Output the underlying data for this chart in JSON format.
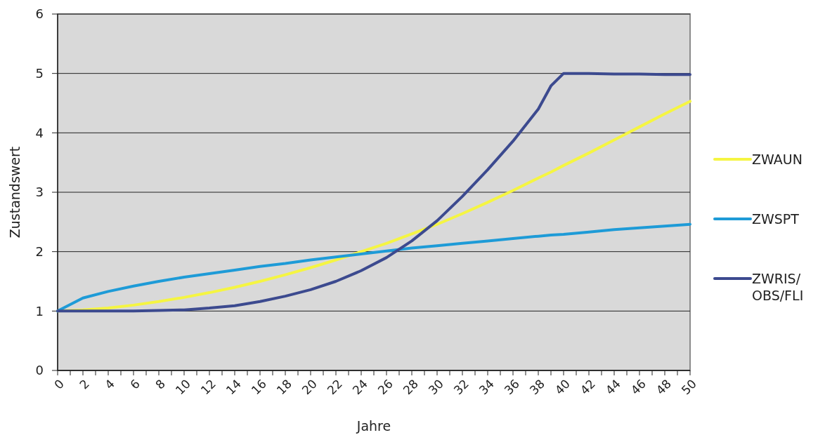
{
  "chart_data": {
    "type": "line",
    "xlabel": "Jahre",
    "ylabel": "Zustandswert",
    "xlim": [
      0,
      50
    ],
    "ylim": [
      0,
      6
    ],
    "yticks": [
      0,
      1,
      2,
      3,
      4,
      5,
      6
    ],
    "xticks": [
      0,
      {
        "value": 1,
        "label": null
      },
      2,
      {
        "value": 3,
        "label": null
      },
      4,
      {
        "value": 5,
        "label": null
      },
      6,
      {
        "value": 7,
        "label": null
      },
      8,
      {
        "value": 9,
        "label": null
      },
      10,
      {
        "value": 11,
        "label": null
      },
      12,
      {
        "value": 13,
        "label": null
      },
      14,
      {
        "value": 15,
        "label": null
      },
      16,
      {
        "value": 17,
        "label": null
      },
      18,
      {
        "value": 19,
        "label": null
      },
      20,
      {
        "value": 21,
        "label": null
      },
      22,
      {
        "value": 23,
        "label": null
      },
      24,
      {
        "value": 25,
        "label": null
      },
      26,
      {
        "value": 27,
        "label": null
      },
      28,
      {
        "value": 29,
        "label": null
      },
      30,
      {
        "value": 31,
        "label": null
      },
      32,
      {
        "value": 33,
        "label": null
      },
      34,
      {
        "value": 35,
        "label": null
      },
      36,
      {
        "value": 37,
        "label": null
      },
      38,
      {
        "value": 39,
        "label": null
      },
      40,
      {
        "value": 41,
        "label": null
      },
      42,
      {
        "value": 43,
        "label": null
      },
      44,
      {
        "value": 45,
        "label": null
      },
      46,
      {
        "value": 47,
        "label": null
      },
      48,
      {
        "value": 49,
        "label": null
      },
      50
    ],
    "grid": "y",
    "legend": "right",
    "marker": "none",
    "line_style": "solid",
    "x": [
      0,
      2,
      4,
      6,
      8,
      10,
      12,
      14,
      16,
      18,
      20,
      22,
      24,
      26,
      28,
      30,
      32,
      34,
      36,
      38,
      39,
      40,
      42,
      44,
      46,
      48,
      50
    ],
    "series": [
      {
        "name": "ZWAUN",
        "color": "#f5f542",
        "values": [
          1,
          1.02,
          1.05,
          1.1,
          1.16,
          1.23,
          1.31,
          1.4,
          1.5,
          1.61,
          1.73,
          1.86,
          2.0,
          2.14,
          2.3,
          2.46,
          2.64,
          2.83,
          3.03,
          3.24,
          3.34,
          3.45,
          3.66,
          3.88,
          4.1,
          4.32,
          4.53
        ]
      },
      {
        "name": "ZWSPT",
        "color": "#1e9bd7",
        "values": [
          1,
          1.22,
          1.33,
          1.42,
          1.5,
          1.57,
          1.63,
          1.69,
          1.75,
          1.8,
          1.86,
          1.91,
          1.96,
          2.01,
          2.06,
          2.1,
          2.14,
          2.18,
          2.22,
          2.26,
          2.28,
          2.29,
          2.33,
          2.37,
          2.4,
          2.43,
          2.46
        ]
      },
      {
        "name": "ZWRIS/OBS/FLI",
        "color": "#3c4a8f",
        "values": [
          1,
          1,
          1,
          1,
          1.01,
          1.02,
          1.05,
          1.09,
          1.16,
          1.25,
          1.36,
          1.5,
          1.68,
          1.9,
          2.18,
          2.52,
          2.93,
          3.38,
          3.86,
          4.4,
          4.79,
          5.0,
          5.0,
          4.99,
          4.99,
          4.98,
          4.98
        ]
      }
    ]
  }
}
